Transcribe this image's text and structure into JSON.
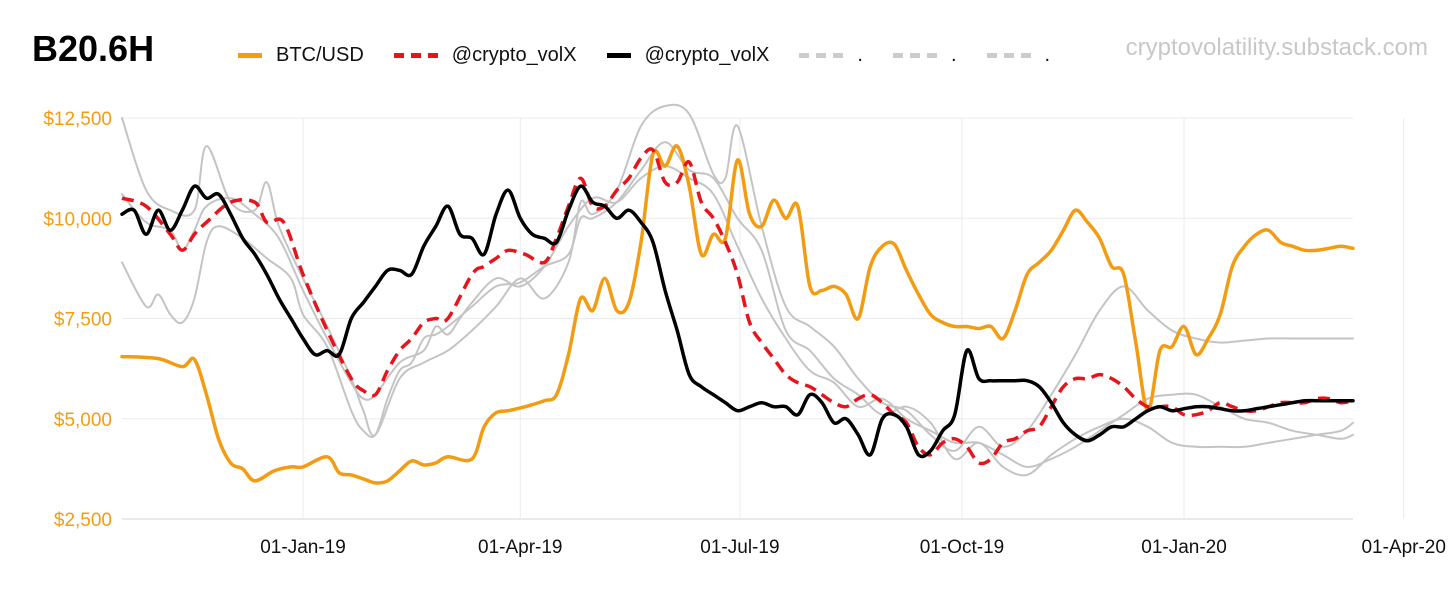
{
  "header": {
    "title": "B20.6H",
    "watermark": "cryptovolatility.substack.com"
  },
  "legend": [
    {
      "label": "BTC/USD",
      "color": "#f39c12",
      "style": "solid"
    },
    {
      "label": "@crypto_volX",
      "color": "#e8141b",
      "style": "dashed"
    },
    {
      "label": "@crypto_volX",
      "color": "#000000",
      "style": "solid"
    },
    {
      "label": ".",
      "color": "#cccccc",
      "style": "dashed"
    },
    {
      "label": ".",
      "color": "#cccccc",
      "style": "dashed"
    },
    {
      "label": ".",
      "color": "#cccccc",
      "style": "dashed"
    }
  ],
  "chart_data": {
    "type": "line",
    "title": "B20.6H",
    "xlabel": "",
    "ylabel": "",
    "x_unit": "days since 01-Jan-19",
    "xlim": [
      -75,
      435
    ],
    "ylim": [
      2500,
      12500
    ],
    "y_ticks": [
      {
        "value": 2500,
        "label": "$2,500"
      },
      {
        "value": 5000,
        "label": "$5,000"
      },
      {
        "value": 7500,
        "label": "$7,500"
      },
      {
        "value": 10000,
        "label": "$10,000"
      },
      {
        "value": 12500,
        "label": "$12,500"
      }
    ],
    "x_ticks": [
      {
        "value": 0,
        "label": "01-Jan-19"
      },
      {
        "value": 90,
        "label": "01-Apr-19"
      },
      {
        "value": 181,
        "label": "01-Jul-19"
      },
      {
        "value": 273,
        "label": "01-Oct-19"
      },
      {
        "value": 365,
        "label": "01-Jan-20"
      },
      {
        "value": 456,
        "label": "01-Apr-20"
      }
    ],
    "grid": true,
    "series": [
      {
        "name": "BTC/USD",
        "color": "#f39c12",
        "style": "solid",
        "width": 3.5,
        "x": [
          -75,
          -60,
          -50,
          -45,
          -40,
          -35,
          -30,
          -25,
          -20,
          -12,
          -5,
          0,
          10,
          15,
          20,
          25,
          30,
          35,
          40,
          45,
          50,
          55,
          60,
          70,
          75,
          80,
          85,
          92,
          100,
          105,
          110,
          115,
          120,
          125,
          130,
          135,
          140,
          145,
          150,
          155,
          160,
          165,
          170,
          175,
          180,
          185,
          190,
          195,
          200,
          205,
          210,
          215,
          220,
          225,
          230,
          235,
          240,
          245,
          250,
          255,
          260,
          265,
          270,
          275,
          280,
          285,
          290,
          295,
          300,
          305,
          310,
          315,
          320,
          325,
          330,
          335,
          340,
          345,
          350,
          355,
          360,
          365,
          370,
          375,
          380,
          385,
          390,
          395,
          400,
          405,
          410,
          415,
          420,
          425,
          430,
          435
        ],
        "y": [
          6550,
          6500,
          6300,
          6480,
          5600,
          4500,
          3900,
          3750,
          3450,
          3700,
          3800,
          3800,
          4050,
          3650,
          3600,
          3500,
          3400,
          3450,
          3700,
          3950,
          3850,
          3900,
          4050,
          4000,
          4800,
          5150,
          5200,
          5300,
          5450,
          5600,
          6600,
          8000,
          7700,
          8500,
          7700,
          7900,
          9400,
          11600,
          11300,
          11800,
          10800,
          9100,
          9600,
          9500,
          11450,
          10100,
          9800,
          10450,
          10000,
          10300,
          8300,
          8200,
          8300,
          8100,
          7500,
          8800,
          9300,
          9350,
          8700,
          8100,
          7600,
          7400,
          7300,
          7300,
          7250,
          7300,
          7000,
          7700,
          8600,
          8900,
          9200,
          9700,
          10200,
          9900,
          9500,
          8800,
          8600,
          6900,
          5200,
          6700,
          6800,
          7300,
          6600,
          7000,
          7600,
          8800,
          9300,
          9600,
          9700,
          9400,
          9300,
          9200,
          9200,
          9250,
          9300,
          9250
        ]
      },
      {
        "name": "@crypto_volX",
        "color": "#e8141b",
        "style": "dashed",
        "width": 3.5,
        "x": [
          -75,
          -65,
          -55,
          -50,
          -45,
          -40,
          -30,
          -20,
          -15,
          -8,
          0,
          10,
          20,
          25,
          30,
          35,
          40,
          45,
          50,
          55,
          60,
          70,
          75,
          80,
          85,
          92,
          100,
          105,
          110,
          115,
          120,
          125,
          130,
          135,
          140,
          145,
          150,
          155,
          160,
          165,
          170,
          175,
          180,
          185,
          190,
          195,
          200,
          205,
          210,
          215,
          220,
          225,
          230,
          235,
          240,
          245,
          250,
          255,
          260,
          265,
          270,
          275,
          280,
          285,
          290,
          295,
          300,
          305,
          310,
          315,
          320,
          325,
          330,
          335,
          340,
          345,
          350,
          355,
          360,
          365,
          370,
          375,
          380,
          385,
          390,
          395,
          400,
          405,
          410,
          415,
          420,
          425,
          430,
          435
        ],
        "y": [
          10500,
          10300,
          9600,
          9200,
          9600,
          9900,
          10400,
          10400,
          9900,
          9900,
          8600,
          7200,
          6000,
          5700,
          5600,
          6200,
          6700,
          7000,
          7400,
          7500,
          7500,
          8600,
          8800,
          9000,
          9200,
          9100,
          8900,
          9500,
          10300,
          11000,
          10300,
          10300,
          10700,
          11000,
          11500,
          11700,
          10900,
          10900,
          11400,
          10400,
          10000,
          9400,
          8600,
          7400,
          6900,
          6500,
          6100,
          5900,
          5800,
          5600,
          5400,
          5300,
          5500,
          5600,
          5400,
          5100,
          4900,
          4300,
          4100,
          4400,
          4500,
          4300,
          3900,
          4000,
          4400,
          4500,
          4700,
          4800,
          5300,
          5800,
          6000,
          6000,
          6100,
          6000,
          5800,
          5500,
          5300,
          5300,
          5300,
          5100,
          5100,
          5200,
          5400,
          5300,
          5200,
          5200,
          5300,
          5400,
          5400,
          5400,
          5500,
          5500,
          5400,
          5450
        ]
      },
      {
        "name": "@crypto_volX",
        "color": "#000000",
        "style": "solid",
        "width": 3.5,
        "x": [
          -75,
          -70,
          -65,
          -60,
          -55,
          -50,
          -45,
          -40,
          -35,
          -30,
          -25,
          -20,
          -15,
          -10,
          -5,
          0,
          5,
          10,
          15,
          20,
          25,
          30,
          35,
          40,
          45,
          50,
          55,
          60,
          65,
          70,
          75,
          80,
          85,
          90,
          95,
          100,
          105,
          110,
          115,
          120,
          125,
          130,
          135,
          140,
          145,
          150,
          155,
          160,
          165,
          170,
          175,
          180,
          185,
          190,
          195,
          200,
          205,
          210,
          215,
          220,
          225,
          230,
          235,
          240,
          245,
          250,
          255,
          260,
          265,
          270,
          275,
          280,
          285,
          290,
          295,
          300,
          305,
          310,
          315,
          320,
          325,
          330,
          335,
          340,
          345,
          350,
          355,
          360,
          365,
          370,
          375,
          380,
          385,
          390,
          395,
          400,
          405,
          410,
          415,
          420,
          425,
          430,
          435
        ],
        "y": [
          10100,
          10200,
          9600,
          10200,
          9700,
          10200,
          10800,
          10500,
          10600,
          10100,
          9500,
          9100,
          8600,
          8000,
          7500,
          7000,
          6600,
          6700,
          6600,
          7500,
          7900,
          8300,
          8700,
          8700,
          8600,
          9300,
          9800,
          10300,
          9600,
          9500,
          9100,
          10100,
          10700,
          10000,
          9600,
          9500,
          9400,
          10200,
          10800,
          10400,
          10300,
          10000,
          10200,
          9900,
          9400,
          8200,
          7200,
          6100,
          5800,
          5600,
          5400,
          5200,
          5300,
          5400,
          5300,
          5300,
          5100,
          5600,
          5400,
          4900,
          5000,
          4600,
          4100,
          5000,
          5100,
          4800,
          4100,
          4200,
          4700,
          5100,
          6700,
          6000,
          5950,
          5950,
          5950,
          5950,
          5800,
          5400,
          4900,
          4600,
          4450,
          4600,
          4800,
          4800,
          5000,
          5200,
          5300,
          5200,
          5250,
          5300,
          5300,
          5250,
          5200,
          5200,
          5250,
          5300,
          5350,
          5400,
          5450,
          5450,
          5450,
          5450,
          5450
        ]
      },
      {
        "name": ".",
        "color": "#c4c4c4",
        "style": "solid",
        "width": 2,
        "x": [
          -75,
          -65,
          -55,
          -45,
          -40,
          -30,
          -20,
          -15,
          -10,
          0,
          10,
          20,
          25,
          30,
          40,
          50,
          60,
          70,
          80,
          90,
          100,
          110,
          115,
          120,
          130,
          140,
          150,
          160,
          170,
          175,
          180,
          190,
          200,
          210,
          220,
          230,
          240,
          250,
          260,
          270,
          280,
          290,
          300,
          310,
          320,
          330,
          340,
          350,
          360,
          370,
          380,
          390,
          400,
          410,
          420,
          430,
          435
        ],
        "y": [
          12500,
          10700,
          10200,
          10200,
          11800,
          10400,
          10200,
          10900,
          9800,
          8500,
          7300,
          6000,
          5200,
          4600,
          6000,
          6400,
          6700,
          7200,
          7800,
          8500,
          8000,
          8900,
          10400,
          10100,
          10700,
          12300,
          12800,
          12600,
          11100,
          11000,
          12300,
          9800,
          7800,
          7300,
          6800,
          6000,
          5400,
          5200,
          4600,
          4200,
          4800,
          4300,
          4700,
          5600,
          6600,
          7700,
          8300,
          7700,
          7200,
          7000,
          6900,
          6950,
          7000,
          7000,
          7000,
          7000,
          7000
        ]
      },
      {
        "name": ".",
        "color": "#c4c4c4",
        "style": "solid",
        "width": 2,
        "x": [
          -75,
          -65,
          -60,
          -55,
          -50,
          -45,
          -40,
          -35,
          -25,
          -15,
          -5,
          0,
          10,
          20,
          25,
          30,
          35,
          40,
          45,
          50,
          55,
          60,
          70,
          80,
          90,
          100,
          110,
          115,
          120,
          130,
          140,
          150,
          160,
          170,
          180,
          190,
          200,
          210,
          220,
          230,
          240,
          250,
          260,
          270,
          280,
          290,
          300,
          310,
          320,
          330,
          340,
          350,
          360,
          370,
          380,
          390,
          400,
          410,
          420,
          430,
          435
        ],
        "y": [
          8900,
          7800,
          8100,
          7600,
          7400,
          8000,
          9400,
          9800,
          9500,
          9000,
          8500,
          7600,
          6800,
          5200,
          4700,
          4600,
          5500,
          6200,
          6400,
          7000,
          7100,
          7300,
          7800,
          8300,
          8400,
          8800,
          9100,
          10000,
          10000,
          10400,
          11200,
          11900,
          11200,
          11000,
          10000,
          9200,
          7200,
          6700,
          6000,
          5600,
          5100,
          5300,
          4900,
          4000,
          4400,
          3800,
          3600,
          4100,
          4500,
          4800,
          5000,
          4800,
          4400,
          4300,
          4300,
          4300,
          4400,
          4500,
          4600,
          4700,
          4900
        ]
      },
      {
        "name": ".",
        "color": "#c4c4c4",
        "style": "solid",
        "width": 2,
        "x": [
          -75,
          -65,
          -55,
          -50,
          -45,
          -40,
          -30,
          -20,
          -10,
          0,
          10,
          20,
          25,
          30,
          40,
          50,
          55,
          60,
          65,
          70,
          80,
          90,
          100,
          110,
          120,
          130,
          140,
          150,
          160,
          170,
          180,
          190,
          200,
          210,
          220,
          230,
          240,
          250,
          260,
          270,
          280,
          290,
          300,
          310,
          320,
          330,
          340,
          350,
          360,
          370,
          380,
          390,
          400,
          410,
          420,
          430,
          435
        ],
        "y": [
          10600,
          9900,
          9700,
          9200,
          9700,
          10300,
          10500,
          10100,
          9500,
          8200,
          7000,
          5900,
          5500,
          5600,
          6400,
          6700,
          7300,
          7100,
          7500,
          7900,
          8500,
          8300,
          8800,
          9800,
          10500,
          10400,
          11000,
          11300,
          11000,
          10600,
          9300,
          8000,
          7000,
          6200,
          5900,
          5300,
          5500,
          5000,
          4700,
          4400,
          4400,
          4100,
          3800,
          4000,
          4300,
          4700,
          5100,
          5500,
          5600,
          5600,
          5300,
          5000,
          4900,
          4700,
          4600,
          4500,
          4600
        ]
      }
    ]
  }
}
